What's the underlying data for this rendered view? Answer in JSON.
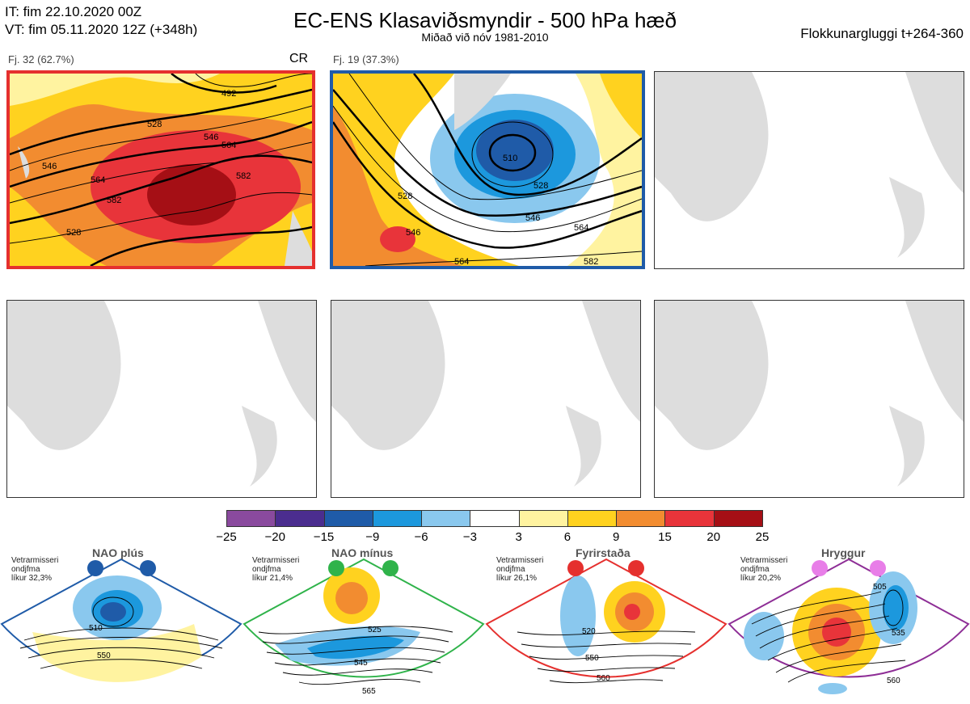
{
  "header": {
    "it": "IT: fim 22.10.2020 00Z",
    "vt": "VT: fim 05.11.2020 12Z  (+348h)",
    "title": "EC-ENS Klasaviðsmyndir - 500 hPa hæð",
    "subtitle": "Miðað við nóv 1981-2010",
    "window": "Flokkunargluggi t+264-360"
  },
  "panels": [
    {
      "label": "Fj. 32 (62.7%)",
      "tag": "CR",
      "frame": "#e5302e",
      "contours": [
        "528",
        "546",
        "564",
        "582",
        "492",
        "528",
        "546",
        "564",
        "582"
      ]
    },
    {
      "label": "Fj. 19 (37.3%)",
      "frame": "#1f5ba8",
      "contours": [
        "510",
        "528",
        "546",
        "564",
        "528",
        "546",
        "564",
        "582"
      ]
    }
  ],
  "colorbar": {
    "ticks": [
      "−25",
      "−20",
      "−15",
      "−9",
      "−6",
      "−3",
      "3",
      "6",
      "9",
      "15",
      "20",
      "25"
    ],
    "colors": [
      "#8a4a9e",
      "#4b2d8f",
      "#1f5ba8",
      "#1c98dd",
      "#8ac8ee",
      "#ffffff",
      "#fff3a0",
      "#ffd21f",
      "#f28c30",
      "#e8343a",
      "#a50f15"
    ]
  },
  "regimes": [
    {
      "title": "NAO plús",
      "note": [
        "Vetrarmisseri",
        "ondjfma",
        "líkur 32,3%"
      ],
      "dot_color": "#1f5ba8",
      "frame": "#1f5ba8",
      "contours": [
        "510",
        "550"
      ]
    },
    {
      "title": "NAO mínus",
      "note": [
        "Vetrarmisseri",
        "ondjfma",
        "líkur 21,4%"
      ],
      "dot_color": "#2fb34a",
      "frame": "#2fb34a",
      "contours": [
        "525",
        "545",
        "565"
      ]
    },
    {
      "title": "Fyrirstaða",
      "note": [
        "Vetrarmisseri",
        "ondjfma",
        "líkur 26,1%"
      ],
      "dot_color": "#e5302e",
      "frame": "#e5302e",
      "contours": [
        "520",
        "550",
        "560"
      ]
    },
    {
      "title": "Hryggur",
      "note": [
        "Vetrarmisseri",
        "ondjfma",
        "líkur 20,2%"
      ],
      "dot_color": "#e87ee8",
      "frame": "#8e2e96",
      "contours": [
        "505",
        "535",
        "560"
      ]
    }
  ]
}
